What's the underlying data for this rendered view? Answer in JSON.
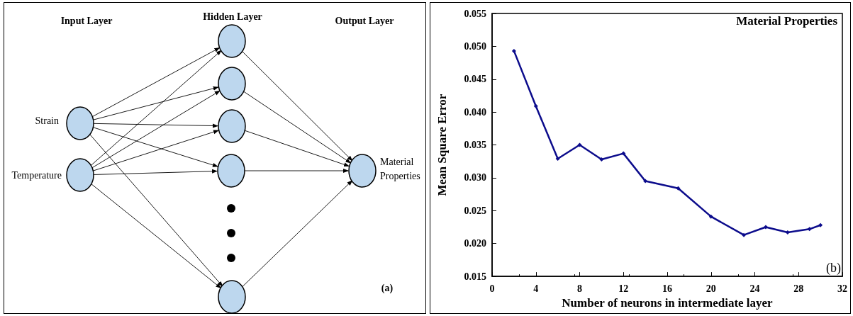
{
  "chart_data": [
    {
      "type": "other",
      "annotations": [
        "Input Layer",
        "Hidden Layer",
        "Output Layer",
        "Strain",
        "Temperature",
        "Material Properties",
        "(a)"
      ]
    },
    {
      "type": "line",
      "title": "Material Properties",
      "xlabel": "Number of neurons in intermediate layer",
      "ylabel": "Mean Square Error",
      "annotations": [
        "(b)"
      ],
      "x": [
        2,
        4,
        6,
        8,
        10,
        12,
        14,
        17,
        20,
        23,
        25,
        27,
        29,
        30
      ],
      "series": [
        {
          "color": "#0c0c8c",
          "values": [
            0.0493,
            0.0409,
            0.0329,
            0.035,
            0.0328,
            0.0337,
            0.0295,
            0.0284,
            0.0241,
            0.0213,
            0.0225,
            0.0217,
            0.0222,
            0.0228
          ]
        }
      ],
      "xlim": [
        0,
        32
      ],
      "xticks": [
        0,
        4,
        8,
        12,
        16,
        20,
        24,
        28,
        32
      ],
      "ylim": [
        0.015,
        0.055
      ],
      "yticks": [
        0.015,
        {
          "value": 0.02,
          "label": "0.020"
        },
        0.025,
        {
          "value": 0.03,
          "label": "0.030"
        },
        0.035,
        {
          "value": 0.04,
          "label": "0.040"
        },
        0.045,
        {
          "value": 0.05,
          "label": "0.050"
        },
        0.055
      ],
      "grid": false,
      "marker": "diamond",
      "line_style": "solid"
    }
  ]
}
